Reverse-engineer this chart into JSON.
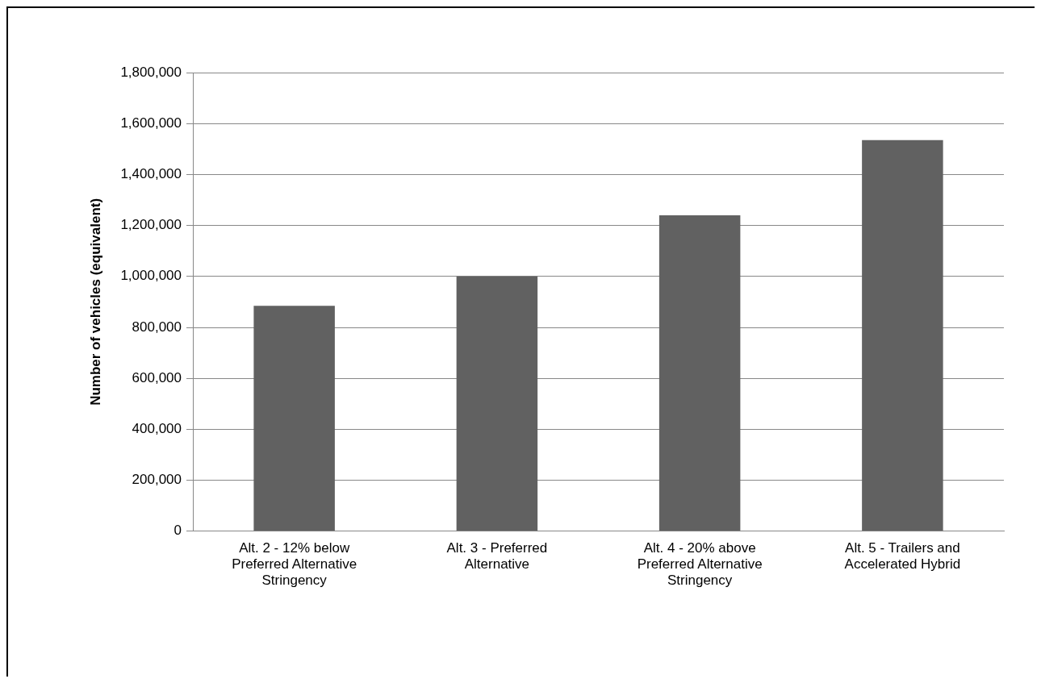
{
  "chart_data": {
    "type": "bar",
    "ylabel": "Number of vehicles (equivalent)",
    "categories": [
      "Alt. 2 - 12% below Preferred Alternative Stringency",
      "Alt. 3 - Preferred Alternative",
      "Alt. 4 - 20% above Preferred Alternative Stringency",
      "Alt. 5 - Trailers and Accelerated Hybrid"
    ],
    "values": [
      885000,
      1000000,
      1240000,
      1535000
    ],
    "color": "#616161",
    "ylim": [
      0,
      1800000
    ],
    "yticks": [
      0,
      {
        "value": 200000,
        "label": "200,000"
      },
      {
        "value": 400000,
        "label": "400,000"
      },
      {
        "value": 600000,
        "label": "600,000"
      },
      {
        "value": 800000,
        "label": "800,000"
      },
      {
        "value": 1000000,
        "label": "1,000,000"
      },
      {
        "value": 1200000,
        "label": "1,200,000"
      },
      {
        "value": 1400000,
        "label": "1,400,000"
      },
      {
        "value": 1600000,
        "label": "1,600,000"
      },
      {
        "value": 1800000,
        "label": "1,800,000"
      }
    ],
    "grid": "y",
    "legend": false
  }
}
